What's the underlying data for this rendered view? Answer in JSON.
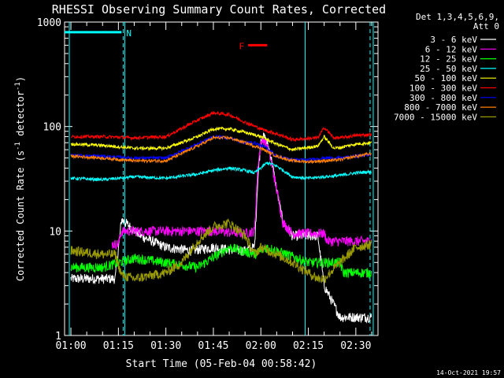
{
  "chart_data": {
    "type": "line",
    "title": "RHESSI Observing Summary Count Rates, Corrected",
    "xlabel": "Start Time (05-Feb-04 00:58:42)",
    "ylabel": "Corrected Count Rate (s",
    "ylabel_sup": "-1",
    "ylabel_mid": " detector",
    "ylabel_sup2": "-1",
    "ylabel_end": ")",
    "yscale": "log",
    "ylim": [
      1,
      1000
    ],
    "xlim_minutes": [
      -2,
      97
    ],
    "x_unit": "minutes after 01:00",
    "x_ticks": [
      {
        "label": "01:00",
        "min": 0
      },
      {
        "label": "01:15",
        "min": 15
      },
      {
        "label": "01:30",
        "min": 30
      },
      {
        "label": "01:45",
        "min": 45
      },
      {
        "label": "02:00",
        "min": 60
      },
      {
        "label": "02:15",
        "min": 75
      },
      {
        "label": "02:30",
        "min": 90
      }
    ],
    "y_ticks": [
      {
        "label": "1",
        "value": 1
      },
      {
        "label": "10",
        "value": 10
      },
      {
        "label": "100",
        "value": 100
      },
      {
        "label": "1000",
        "value": 1000
      }
    ],
    "legend_header": [
      "Det 1,3,4,5,6,9,",
      "Att 0"
    ],
    "legend_position": "right",
    "series": [
      {
        "name": "3 - 6 keV",
        "color": "#ffffff",
        "x": [
          0,
          14,
          16,
          22,
          30,
          38,
          45,
          52,
          55,
          58,
          59,
          60,
          61,
          62,
          63,
          65,
          67,
          70,
          75,
          78,
          80,
          85,
          90,
          95
        ],
        "y": [
          3.5,
          3.5,
          13,
          9,
          7,
          6.5,
          7,
          6.5,
          6.5,
          7,
          30,
          75,
          80,
          70,
          55,
          25,
          12,
          9,
          9,
          9,
          3,
          1.5,
          1.5,
          1.5
        ]
      },
      {
        "name": "6 - 12 keV",
        "color": "#ff00ff",
        "x": [
          13,
          15,
          16,
          30,
          45,
          55,
          58,
          59,
          60,
          61,
          62,
          63,
          65,
          67,
          70,
          80,
          81,
          95
        ],
        "y": [
          7.5,
          7.5,
          10,
          10,
          10,
          9.5,
          10,
          40,
          70,
          75,
          65,
          50,
          25,
          12,
          9.5,
          9.5,
          8,
          8
        ]
      },
      {
        "name": "12 - 25 keV",
        "color": "#00ff00",
        "x": [
          0,
          10,
          20,
          30,
          40,
          50,
          58,
          62,
          68,
          75,
          85,
          86,
          95
        ],
        "y": [
          4.5,
          4.5,
          5.5,
          5,
          4.5,
          7,
          6,
          7,
          6,
          5,
          5,
          4,
          4
        ]
      },
      {
        "name": "25 - 50 keV",
        "color": "#00ffff",
        "x": [
          0,
          10,
          20,
          30,
          40,
          45,
          50,
          55,
          58,
          62,
          65,
          70,
          75,
          80,
          85,
          90,
          95
        ],
        "y": [
          32,
          31,
          33,
          32,
          35,
          38,
          40,
          38,
          36,
          45,
          42,
          33,
          32,
          33,
          34,
          36,
          37
        ]
      },
      {
        "name": "50 - 100 keV",
        "color": "#ffff00",
        "x": [
          0,
          10,
          20,
          30,
          40,
          45,
          50,
          55,
          60,
          65,
          70,
          78,
          80,
          83,
          85,
          90,
          95
        ],
        "y": [
          68,
          66,
          62,
          62,
          80,
          95,
          95,
          88,
          80,
          68,
          60,
          65,
          80,
          62,
          63,
          68,
          70
        ]
      },
      {
        "name": "100 - 300 keV",
        "color": "#ff0000",
        "x": [
          0,
          10,
          20,
          30,
          40,
          45,
          50,
          55,
          60,
          65,
          70,
          78,
          80,
          83,
          85,
          90,
          95
        ],
        "y": [
          80,
          80,
          78,
          80,
          115,
          135,
          130,
          110,
          95,
          85,
          75,
          78,
          98,
          78,
          78,
          82,
          84
        ]
      },
      {
        "name": "300 - 800 keV",
        "color": "#0000ff",
        "x": [
          0,
          10,
          20,
          30,
          40,
          45,
          50,
          55,
          58,
          62,
          65,
          70,
          75,
          80,
          85,
          90,
          95
        ],
        "y": [
          53,
          52,
          50,
          50,
          68,
          80,
          78,
          70,
          70,
          62,
          52,
          48,
          48,
          50,
          50,
          52,
          54
        ]
      },
      {
        "name": "800 - 7000 keV",
        "color": "#ff8000",
        "x": [
          0,
          10,
          20,
          30,
          40,
          45,
          50,
          55,
          60,
          65,
          70,
          75,
          80,
          85,
          90,
          95
        ],
        "y": [
          52,
          50,
          47,
          47,
          65,
          78,
          78,
          70,
          62,
          52,
          47,
          46,
          47,
          48,
          52,
          55
        ]
      },
      {
        "name": "7000 - 15000 keV",
        "color": "#999900",
        "x": [
          0,
          10,
          14,
          16,
          20,
          30,
          35,
          40,
          45,
          50,
          55,
          58,
          60,
          65,
          70,
          75,
          78,
          80,
          85,
          90,
          95
        ],
        "y": [
          6.5,
          6,
          6,
          3.8,
          3.5,
          4,
          5,
          8,
          11,
          12,
          9,
          6,
          7,
          6,
          5,
          4,
          3.5,
          3.5,
          5,
          7,
          7.5
        ]
      }
    ],
    "annotations": [
      {
        "text": "N",
        "color": "#00ffff",
        "x_start": -2,
        "x_end": 16,
        "y": 800
      },
      {
        "text": "F",
        "color": "#ff0000",
        "x_start": 56,
        "x_end": 62,
        "y": 600
      }
    ],
    "cyan_solid_lines_min": [
      -0.5,
      17,
      74,
      95.5
    ],
    "cyan_dashed_lines_min": [
      16.5,
      94.5
    ]
  },
  "footer": {
    "timestamp": "14-Oct-2021 19:57"
  }
}
